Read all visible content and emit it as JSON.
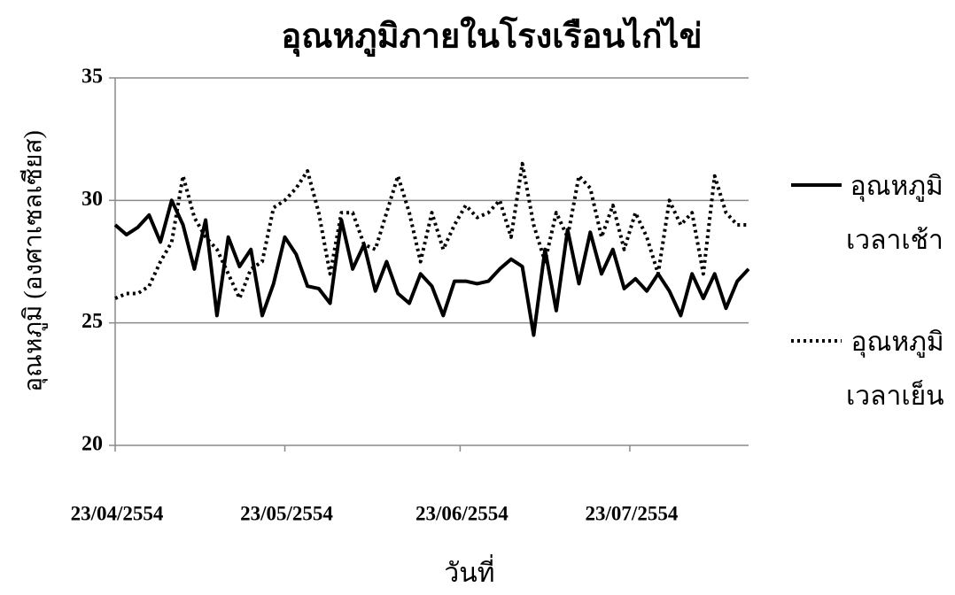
{
  "chart_data": {
    "type": "line",
    "title": "อุณหภูมิภายในโรงเรือนไก่ไข่",
    "xlabel": "วันที่",
    "ylabel": "อุณหภูมิ (องศาเซลเซียส)",
    "x": [
      "23/04/2554",
      "25/04/2554",
      "27/04/2554",
      "29/04/2554",
      "01/05/2554",
      "03/05/2554",
      "05/05/2554",
      "07/05/2554",
      "09/05/2554",
      "11/05/2554",
      "13/05/2554",
      "15/05/2554",
      "17/05/2554",
      "19/05/2554",
      "21/05/2554",
      "23/05/2554",
      "25/05/2554",
      "27/05/2554",
      "29/05/2554",
      "31/05/2554",
      "02/06/2554",
      "04/06/2554",
      "06/06/2554",
      "08/06/2554",
      "10/06/2554",
      "12/06/2554",
      "14/06/2554",
      "16/06/2554",
      "18/06/2554",
      "20/06/2554",
      "22/06/2554",
      "24/06/2554",
      "26/06/2554",
      "28/06/2554",
      "30/06/2554",
      "02/07/2554",
      "04/07/2554",
      "06/07/2554",
      "08/07/2554",
      "10/07/2554",
      "12/07/2554",
      "14/07/2554",
      "16/07/2554",
      "18/07/2554",
      "20/07/2554",
      "22/07/2554",
      "24/07/2554",
      "26/07/2554",
      "28/07/2554",
      "30/07/2554",
      "01/08/2554",
      "03/08/2554",
      "05/08/2554",
      "07/08/2554",
      "09/08/2554",
      "11/08/2554",
      "13/08/2554"
    ],
    "series": [
      {
        "name": "อุณหภูมิ\nเวลาเช้า",
        "color": "#000000",
        "style": "solid",
        "values": [
          29.0,
          28.6,
          28.9,
          29.4,
          28.3,
          30.0,
          29.0,
          27.2,
          29.2,
          25.3,
          28.5,
          27.3,
          28.0,
          25.3,
          26.6,
          28.5,
          27.8,
          26.5,
          26.4,
          25.8,
          29.2,
          27.2,
          28.2,
          26.3,
          27.5,
          26.2,
          25.8,
          27.0,
          26.5,
          25.3,
          26.7,
          26.7,
          26.6,
          26.7,
          27.2,
          27.6,
          27.3,
          24.5,
          28.0,
          25.5,
          28.8,
          26.6,
          28.7,
          27.0,
          28.0,
          26.4,
          26.8,
          26.3,
          27.0,
          26.3,
          25.3,
          27.0,
          26.0,
          27.0,
          25.6,
          26.7,
          27.2
        ]
      },
      {
        "name": "อุณหภูมิ\nเวลาเย็น",
        "color": "#000000",
        "style": "dotted",
        "values": [
          26.0,
          26.2,
          26.2,
          26.5,
          27.5,
          28.3,
          31.0,
          29.3,
          28.5,
          28.0,
          27.0,
          26.0,
          27.2,
          27.5,
          29.7,
          30.0,
          30.5,
          31.2,
          29.5,
          27.0,
          29.5,
          29.5,
          28.2,
          28.0,
          29.5,
          31.0,
          29.5,
          27.5,
          29.5,
          28.0,
          29.0,
          29.8,
          29.3,
          29.5,
          30.0,
          28.5,
          31.5,
          29.0,
          27.5,
          29.5,
          28.5,
          31.0,
          30.5,
          28.5,
          29.8,
          28.0,
          29.5,
          28.5,
          27.0,
          30.0,
          29.0,
          29.5,
          27.0,
          31.0,
          29.5,
          29.0,
          29.0
        ]
      }
    ],
    "xlim": [
      "23/04/2554",
      "13/08/2554"
    ],
    "xticks": [
      "23/04/2554",
      "23/05/2554",
      "23/06/2554",
      "23/07/2554"
    ],
    "ylim": [
      20,
      35
    ],
    "yticks": [
      20,
      25,
      30,
      35
    ],
    "grid": true
  }
}
